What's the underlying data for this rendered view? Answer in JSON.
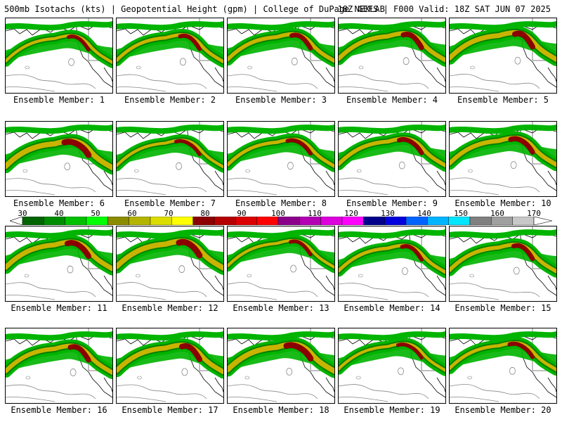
{
  "header": {
    "left": "500mb Isotachs (kts) | Geopotential Height (gpm) | College of DuPage NEXLAB",
    "right": "18Z GEFS | F000 Valid: 18Z SAT JUN 07 2025"
  },
  "members": [
    {
      "label": "Ensemble Member: 1"
    },
    {
      "label": "Ensemble Member: 2"
    },
    {
      "label": "Ensemble Member: 3"
    },
    {
      "label": "Ensemble Member: 4"
    },
    {
      "label": "Ensemble Member: 5"
    },
    {
      "label": "Ensemble Member: 6"
    },
    {
      "label": "Ensemble Member: 7"
    },
    {
      "label": "Ensemble Member: 8"
    },
    {
      "label": "Ensemble Member: 9"
    },
    {
      "label": "Ensemble Member: 10"
    },
    {
      "label": "Ensemble Member: 11"
    },
    {
      "label": "Ensemble Member: 12"
    },
    {
      "label": "Ensemble Member: 13"
    },
    {
      "label": "Ensemble Member: 14"
    },
    {
      "label": "Ensemble Member: 15"
    },
    {
      "label": "Ensemble Member: 16"
    },
    {
      "label": "Ensemble Member: 17"
    },
    {
      "label": "Ensemble Member: 18"
    },
    {
      "label": "Ensemble Member: 19"
    },
    {
      "label": "Ensemble Member: 20"
    }
  ],
  "colorbar": {
    "ticks_odd": [
      "30",
      "50",
      "70",
      "90",
      "110",
      "130",
      "150",
      "170"
    ],
    "ticks_even": [
      "40",
      "60",
      "80",
      "100",
      "120",
      "140",
      "160"
    ],
    "colors": [
      "#006400",
      "#008c00",
      "#00c000",
      "#00ff00",
      "#8b8b00",
      "#b4b400",
      "#dcdc00",
      "#ffff00",
      "#8b0000",
      "#b40000",
      "#dc0000",
      "#ff0000",
      "#8b008b",
      "#b400b4",
      "#dc00dc",
      "#ff00ff",
      "#00008b",
      "#0000dc",
      "#0064ff",
      "#00b4ff",
      "#00e6ff",
      "#808080",
      "#a0a0a0",
      "#c8c8c8"
    ]
  },
  "map_colors": {
    "jet_outer": "#00b400",
    "jet_inner": "#008000",
    "jet_core": "#c8b400",
    "jet_max": "#8b0000",
    "height_contour": "#888888",
    "coastline": "#000000"
  }
}
